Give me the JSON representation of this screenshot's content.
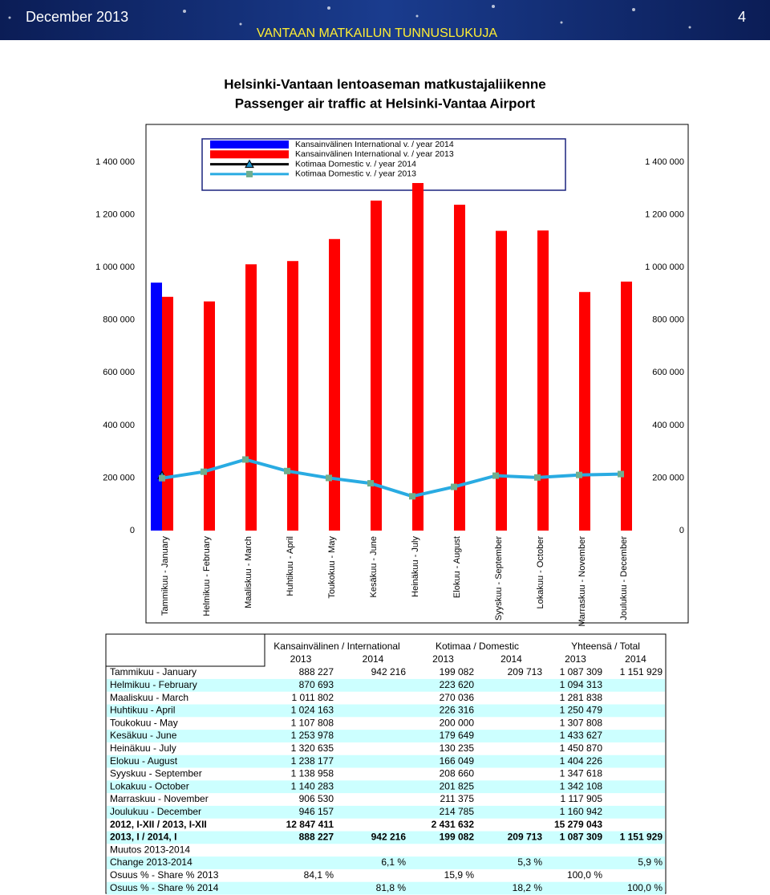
{
  "header": {
    "date": "December 2013",
    "page": "4",
    "banner": "VANTAAN MATKAILUN TUNNUSLUKUJA",
    "title": "Helsinki-Vantaan lentoaseman matkustajaliikenne",
    "subtitle": "Passenger air traffic at Helsinki-Vantaa Airport"
  },
  "chart_data": {
    "type": "bar",
    "categories": [
      "Tammikuu - January",
      "Helmikuu - February",
      "Maaliskuu - March",
      "Huhtikuu - April",
      "Toukokuu - May",
      "Kesäkuu - June",
      "Heinäkuu - July",
      "Elokuu - August",
      "Syyskuu - September",
      "Lokakuu - October",
      "Marraskuu - November",
      "Joulukuu - December"
    ],
    "series": [
      {
        "name": "Kansainvälinen International v. / year 2014",
        "type": "bar",
        "color": "#0000ff",
        "values": [
          942216,
          null,
          null,
          null,
          null,
          null,
          null,
          null,
          null,
          null,
          null,
          null
        ]
      },
      {
        "name": "Kansainvälinen International v. / year 2013",
        "type": "bar",
        "color": "#ff0000",
        "values": [
          888227,
          870693,
          1011802,
          1024163,
          1107808,
          1253978,
          1320635,
          1238177,
          1138958,
          1140283,
          906530,
          946157
        ]
      },
      {
        "name": "Kotimaa Domestic v. / year 2014",
        "type": "line",
        "color": "#000000",
        "marker": "triangle",
        "marker_color": "#1e90c8",
        "values": [
          209713,
          null,
          null,
          null,
          null,
          null,
          null,
          null,
          null,
          null,
          null,
          null
        ]
      },
      {
        "name": "Kotimaa Domestic v. / year 2013",
        "type": "line",
        "color": "#29abe2",
        "marker": "square",
        "marker_color": "#6fae8f",
        "values": [
          199082,
          223620,
          270036,
          226316,
          200000,
          179649,
          130235,
          166049,
          208660,
          201825,
          211375,
          214785
        ]
      }
    ],
    "ylim": [
      0,
      1400000
    ],
    "yticks": [
      0,
      {
        "value": 200000,
        "label": "200 000"
      },
      {
        "value": 400000,
        "label": "400 000"
      },
      {
        "value": 600000,
        "label": "600 000"
      },
      {
        "value": 800000,
        "label": "800 000"
      },
      {
        "value": 1000000,
        "label": "1 000 000"
      },
      {
        "value": 1200000,
        "label": "1 200 000"
      },
      {
        "value": 1400000,
        "label": "1 400 000"
      }
    ],
    "y2lim": [
      0,
      1400000
    ],
    "y2ticks": [
      0,
      {
        "value": 200000,
        "label": "200 000"
      },
      {
        "value": 400000,
        "label": "400 000"
      },
      {
        "value": 600000,
        "label": "600 000"
      },
      {
        "value": 800000,
        "label": "800 000"
      },
      {
        "value": 1000000,
        "label": "1 000 000"
      },
      {
        "value": 1200000,
        "label": "1 200 000"
      },
      {
        "value": 1400000,
        "label": "1 400 000"
      }
    ],
    "grid": false,
    "legend": "top"
  },
  "table": {
    "groups": [
      "Kansainvälinen / International",
      "Kotimaa / Domestic",
      "Yhteensä / Total"
    ],
    "years": [
      "2013",
      "2014",
      "2013",
      "2014",
      "2013",
      "2014"
    ],
    "rows": [
      [
        "Tammikuu - January",
        "888 227",
        "942 216",
        "199 082",
        "209 713",
        "1 087 309",
        "1 151 929"
      ],
      [
        "Helmikuu - February",
        "870 693",
        null,
        "223 620",
        null,
        "1 094 313",
        null
      ],
      [
        "Maaliskuu - March",
        "1 011 802",
        null,
        "270 036",
        null,
        "1 281 838",
        null
      ],
      [
        "Huhtikuu - April",
        "1 024 163",
        null,
        "226 316",
        null,
        "1 250 479",
        null
      ],
      [
        "Toukokuu -  May",
        "1 107 808",
        null,
        "200 000",
        null,
        "1 307 808",
        null
      ],
      [
        "Kesäkuu - June",
        "1 253 978",
        null,
        "179 649",
        null,
        "1 433 627",
        null
      ],
      [
        "Heinäkuu - July",
        "1 320 635",
        null,
        "130 235",
        null,
        "1 450 870",
        null
      ],
      [
        "Elokuu - August",
        "1 238 177",
        null,
        "166 049",
        null,
        "1 404 226",
        null
      ],
      [
        "Syyskuu - September",
        "1 138 958",
        null,
        "208 660",
        null,
        "1 347 618",
        null
      ],
      [
        "Lokakuu - October",
        "1 140 283",
        null,
        "201 825",
        null,
        "1 342 108",
        null
      ],
      [
        "Marraskuu - November",
        "906 530",
        null,
        "211 375",
        null,
        "1 117 905",
        null
      ],
      [
        "Joulukuu - December",
        "946 157",
        null,
        "214 785",
        null,
        "1 160 942",
        null
      ],
      [
        "2012, I-XII / 2013, I-XII",
        "12 847 411",
        null,
        "2 431 632",
        null,
        "15 279 043",
        null
      ],
      [
        "2013, I / 2014, I",
        "888 227",
        "942 216",
        "199 082",
        "209 713",
        "1 087 309",
        "1 151 929"
      ],
      [
        "Muutos  2013-2014",
        null,
        null,
        null,
        null,
        null,
        null
      ],
      [
        "Change 2013-2014",
        null,
        "6,1 %",
        null,
        "5,3 %",
        null,
        "5,9 %"
      ],
      [
        "Osuus % - Share % 2013",
        "84,1 %",
        null,
        "15,9 %",
        null,
        "100,0 %",
        null
      ],
      [
        "Osuus % - Share % 2014",
        null,
        "81,8 %",
        null,
        "18,2 %",
        null,
        "100,0 %"
      ]
    ]
  }
}
